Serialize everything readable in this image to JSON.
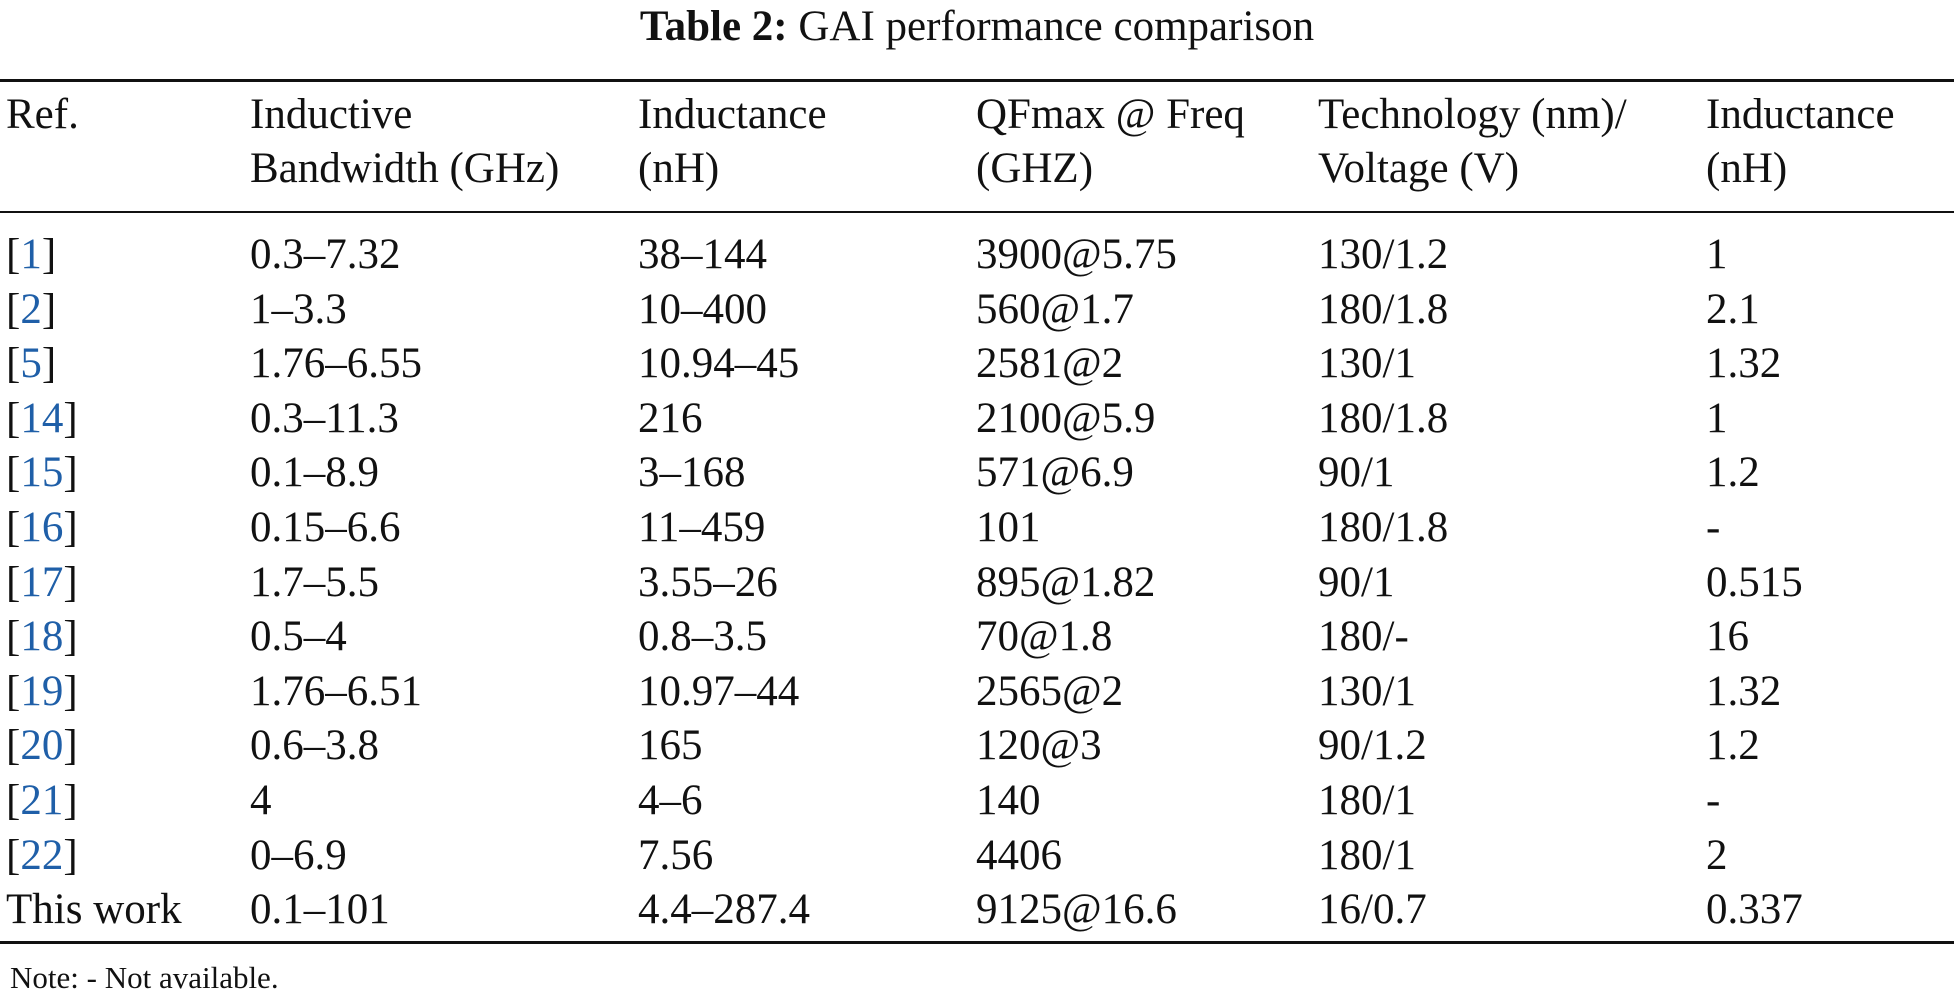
{
  "caption": {
    "label": "Table 2:",
    "text": "GAI performance comparison"
  },
  "table": {
    "headers": [
      [
        "Ref.",
        ""
      ],
      [
        "Inductive",
        "Bandwidth (GHz)"
      ],
      [
        "Inductance",
        "(nH)"
      ],
      [
        "QFmax @ Freq",
        "(GHZ)"
      ],
      [
        "Technology (nm)/",
        "Voltage (V)"
      ],
      [
        "Inductance",
        "(nH)"
      ]
    ],
    "rows": [
      {
        "ref": "1",
        "ref_text": "",
        "bandwidth": "0.3–7.32",
        "inductance": "38–144",
        "qfmax": "3900@5.75",
        "technology": "130/1.2",
        "inductance2": "1"
      },
      {
        "ref": "2",
        "ref_text": "",
        "bandwidth": "1–3.3",
        "inductance": "10–400",
        "qfmax": "560@1.7",
        "technology": "180/1.8",
        "inductance2": "2.1"
      },
      {
        "ref": "5",
        "ref_text": "",
        "bandwidth": "1.76–6.55",
        "inductance": "10.94–45",
        "qfmax": "2581@2",
        "technology": "130/1",
        "inductance2": "1.32"
      },
      {
        "ref": "14",
        "ref_text": "",
        "bandwidth": "0.3–11.3",
        "inductance": "216",
        "qfmax": "2100@5.9",
        "technology": "180/1.8",
        "inductance2": "1"
      },
      {
        "ref": "15",
        "ref_text": "",
        "bandwidth": "0.1–8.9",
        "inductance": "3–168",
        "qfmax": "571@6.9",
        "technology": "90/1",
        "inductance2": "1.2"
      },
      {
        "ref": "16",
        "ref_text": "",
        "bandwidth": "0.15–6.6",
        "inductance": "11–459",
        "qfmax": "101",
        "technology": "180/1.8",
        "inductance2": "-"
      },
      {
        "ref": "17",
        "ref_text": "",
        "bandwidth": "1.7–5.5",
        "inductance": "3.55–26",
        "qfmax": "895@1.82",
        "technology": "90/1",
        "inductance2": "0.515"
      },
      {
        "ref": "18",
        "ref_text": "",
        "bandwidth": "0.5–4",
        "inductance": "0.8–3.5",
        "qfmax": "70@1.8",
        "technology": "180/-",
        "inductance2": "16"
      },
      {
        "ref": "19",
        "ref_text": "",
        "bandwidth": "1.76–6.51",
        "inductance": "10.97–44",
        "qfmax": "2565@2",
        "technology": "130/1",
        "inductance2": "1.32"
      },
      {
        "ref": "20",
        "ref_text": "",
        "bandwidth": "0.6–3.8",
        "inductance": "165",
        "qfmax": "120@3",
        "technology": "90/1.2",
        "inductance2": "1.2"
      },
      {
        "ref": "21",
        "ref_text": "",
        "bandwidth": "4",
        "inductance": "4–6",
        "qfmax": "140",
        "technology": "180/1",
        "inductance2": "-"
      },
      {
        "ref": "22",
        "ref_text": "",
        "bandwidth": "0–6.9",
        "inductance": "7.56",
        "qfmax": "4406",
        "technology": "180/1",
        "inductance2": "2"
      },
      {
        "ref": "",
        "ref_text": "This work",
        "bandwidth": "0.1–101",
        "inductance": "4.4–287.4",
        "qfmax": "9125@16.6",
        "technology": "16/0.7",
        "inductance2": "0.337"
      }
    ]
  },
  "note": "Note: - Not available.",
  "colors": {
    "text": "#111111",
    "link": "#1f5fa8",
    "background": "#ffffff"
  }
}
